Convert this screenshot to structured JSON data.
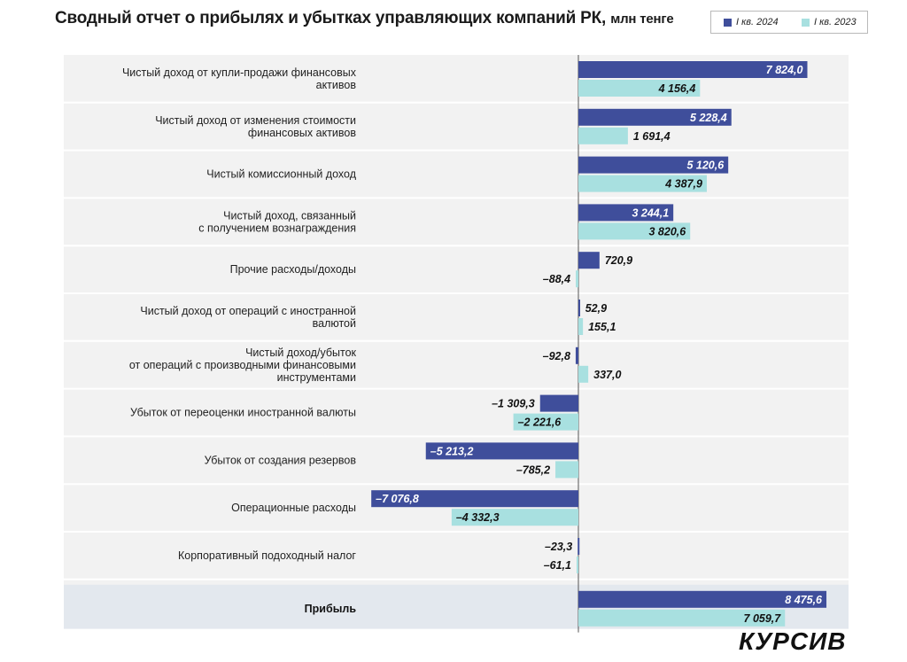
{
  "title": "Сводный отчет о прибылях и убытках управляющих компаний РК,",
  "unit": "млн тенге",
  "logo": "КУРСИВ",
  "colors": {
    "series1": "#3f4e9b",
    "series2": "#a8e0e0",
    "panel": "#f2f2f2",
    "highlight": "#e3e8ee"
  },
  "chart_data": {
    "type": "bar",
    "orientation": "horizontal",
    "title": "Сводный отчет о прибылях и убытках управляющих компаний РК, млн тенге",
    "legend_position": "top-right",
    "xlim": [
      -8000,
      10000
    ],
    "categories": [
      {
        "lines": [
          "Чистый доход от купли-продажи финансовых",
          "активов"
        ],
        "bold": false
      },
      {
        "lines": [
          "Чистый доход от изменения стоимости",
          "финансовых активов"
        ],
        "bold": false
      },
      {
        "lines": [
          "Чистый комиссионный доход"
        ],
        "bold": false
      },
      {
        "lines": [
          "Чистый доход, связанный",
          "с получением вознаграждения"
        ],
        "bold": false
      },
      {
        "lines": [
          "Прочие расходы/доходы"
        ],
        "bold": false
      },
      {
        "lines": [
          "Чистый доход от операций с иностранной",
          "валютой"
        ],
        "bold": false
      },
      {
        "lines": [
          "Чистый доход/убыток",
          "от операций с производными финансовыми",
          "инструментами"
        ],
        "bold": false
      },
      {
        "lines": [
          "Убыток от переоценки иностранной валюты"
        ],
        "bold": false
      },
      {
        "lines": [
          "Убыток от создания резервов"
        ],
        "bold": false
      },
      {
        "lines": [
          "Операционные расходы"
        ],
        "bold": false
      },
      {
        "lines": [
          "Корпоративный подоходный налог"
        ],
        "bold": false
      },
      {
        "lines": [
          "Прибыль"
        ],
        "bold": true
      }
    ],
    "series": [
      {
        "name": "I кв. 2024",
        "values": [
          7824.0,
          5228.4,
          5120.6,
          3244.1,
          720.9,
          52.9,
          -92.8,
          -1309.3,
          -5213.2,
          -7076.8,
          -23.3,
          8475.6
        ],
        "labels": [
          "7 824,0",
          "5 228,4",
          "5 120,6",
          "3 244,1",
          "720,9",
          "52,9",
          "–92,8",
          "–1 309,3",
          "–5 213,2",
          "–7 076,8",
          "–23,3",
          "8 475,6"
        ]
      },
      {
        "name": "I кв. 2023",
        "values": [
          4156.4,
          1691.4,
          4387.9,
          3820.6,
          -88.4,
          155.1,
          337.0,
          -2221.6,
          -785.2,
          -4332.3,
          -61.1,
          7059.7
        ],
        "labels": [
          "4 156,4",
          "1 691,4",
          "4 387,9",
          "3 820,6",
          "–88,4",
          "155,1",
          "337,0",
          "–2 221,6",
          "–785,2",
          "–4 332,3",
          "–61,1",
          "7 059,7"
        ]
      }
    ]
  }
}
